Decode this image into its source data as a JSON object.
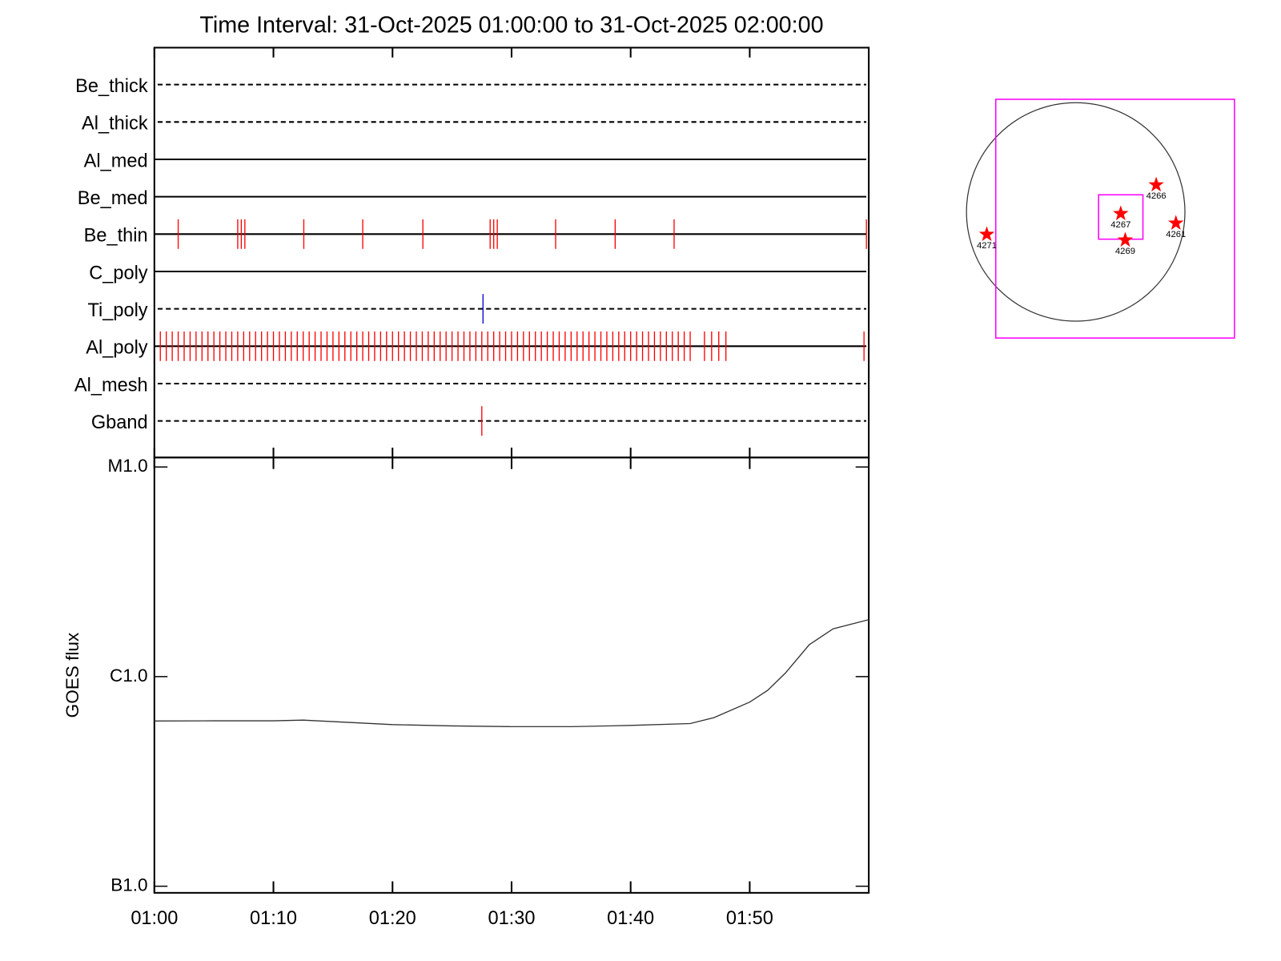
{
  "chart_data": [
    {
      "type": "timeline",
      "title": "Time Interval: 31-Oct-2025 01:00:00 to 31-Oct-2025 02:00:00",
      "xlim": [
        0,
        60
      ],
      "xticks": [
        {
          "value": 0,
          "label": "01:00"
        },
        {
          "value": 10,
          "label": "01:10"
        },
        {
          "value": 20,
          "label": "01:20"
        },
        {
          "value": 30,
          "label": "01:30"
        },
        {
          "value": 40,
          "label": "01:40"
        },
        {
          "value": 50,
          "label": "01:50"
        }
      ],
      "rows": [
        {
          "name": "Be_thick",
          "line": "dashed",
          "color": "#ff0000",
          "events": []
        },
        {
          "name": "Al_thick",
          "line": "dashed",
          "color": "#ff0000",
          "events": []
        },
        {
          "name": "Al_med",
          "line": "solid",
          "color": "#ff0000",
          "events": []
        },
        {
          "name": "Be_med",
          "line": "solid",
          "color": "#ff0000",
          "events": []
        },
        {
          "name": "Be_thin",
          "line": "solid",
          "color": "#ff0000",
          "events": [
            2.0,
            7.0,
            7.3,
            7.6,
            12.55,
            17.5,
            22.55,
            28.2,
            28.5,
            28.8,
            33.7,
            38.7,
            43.65,
            59.8
          ]
        },
        {
          "name": "C_poly",
          "line": "solid",
          "color": "#ff0000",
          "events": []
        },
        {
          "name": "Ti_poly",
          "line": "dashed",
          "color": "#0000cc",
          "events": [
            27.6
          ]
        },
        {
          "name": "Al_poly",
          "line": "solid",
          "color": "#ff0000",
          "events": [
            0.5,
            1.0,
            1.5,
            2.0,
            2.5,
            3.0,
            3.5,
            4.0,
            4.5,
            5.0,
            5.5,
            6.0,
            6.5,
            7.0,
            7.5,
            8.0,
            8.5,
            9.0,
            9.5,
            10.0,
            10.5,
            11.0,
            11.5,
            12.0,
            12.5,
            13.0,
            13.5,
            14.0,
            14.5,
            15.0,
            15.5,
            16.0,
            16.5,
            17.0,
            17.5,
            18.0,
            18.5,
            19.0,
            19.5,
            20.0,
            20.5,
            21.0,
            21.5,
            22.0,
            22.5,
            23.0,
            23.5,
            24.0,
            24.5,
            25.0,
            25.5,
            26.0,
            26.5,
            27.0,
            27.5,
            28.0,
            28.5,
            29.0,
            29.5,
            30.0,
            30.5,
            31.0,
            31.5,
            32.0,
            32.5,
            33.0,
            33.5,
            34.0,
            34.5,
            35.0,
            35.5,
            36.0,
            36.5,
            37.0,
            37.5,
            38.0,
            38.5,
            39.0,
            39.5,
            40.0,
            40.5,
            41.0,
            41.5,
            42.0,
            42.5,
            43.0,
            43.5,
            44.0,
            44.5,
            45.0,
            46.2,
            46.8,
            47.4,
            48.0,
            59.6
          ]
        },
        {
          "name": "Al_mesh",
          "line": "dashed",
          "color": "#ff0000",
          "events": []
        },
        {
          "name": "Gband",
          "line": "dashed",
          "color": "#ff0000",
          "events": [
            27.5
          ]
        }
      ]
    },
    {
      "type": "line",
      "ylabel": "GOES flux",
      "log_scale": true,
      "color": "#333333",
      "xlim": [
        0,
        60
      ],
      "xticks": [
        {
          "value": 0,
          "label": "01:00"
        },
        {
          "value": 10,
          "label": "01:10"
        },
        {
          "value": 20,
          "label": "01:20"
        },
        {
          "value": 30,
          "label": "01:30"
        },
        {
          "value": 40,
          "label": "01:40"
        },
        {
          "value": 50,
          "label": "01:50"
        }
      ],
      "ylim": [
        9.3e-08,
        1.11e-05
      ],
      "yticks": [
        {
          "value": 1e-07,
          "label": "B1.0"
        },
        {
          "value": 1e-06,
          "label": "C1.0"
        },
        {
          "value": 1e-05,
          "label": "M1.0"
        }
      ],
      "x": [
        0,
        5,
        10,
        12.5,
        15,
        20,
        25,
        30,
        35,
        40,
        45,
        47,
        50,
        51.5,
        53,
        55,
        57,
        60
      ],
      "values": [
        6.14e-07,
        6.15e-07,
        6.15e-07,
        6.2e-07,
        6.1e-07,
        5.9e-07,
        5.82e-07,
        5.77e-07,
        5.77e-07,
        5.85e-07,
        5.97e-07,
        6.37e-07,
        7.56e-07,
        8.6e-07,
        1.04e-06,
        1.42e-06,
        1.69e-06,
        1.87e-06
      ]
    },
    {
      "type": "map",
      "disk_radius": 970,
      "fov": [
        {
          "x": 350,
          "y": -60,
          "width": 2120,
          "color": "#ff00ff"
        },
        {
          "x": 400,
          "y": -45,
          "width": 394,
          "color": "#ff00ff"
        }
      ],
      "regions": [
        {
          "label": "4266",
          "x": 715,
          "y": 240
        },
        {
          "label": "4267",
          "x": 400,
          "y": -15
        },
        {
          "label": "4269",
          "x": 440,
          "y": -250
        },
        {
          "label": "4261",
          "x": 890,
          "y": -100
        },
        {
          "label": "4271",
          "x": -790,
          "y": -200
        }
      ],
      "color": "#ff0000"
    }
  ]
}
